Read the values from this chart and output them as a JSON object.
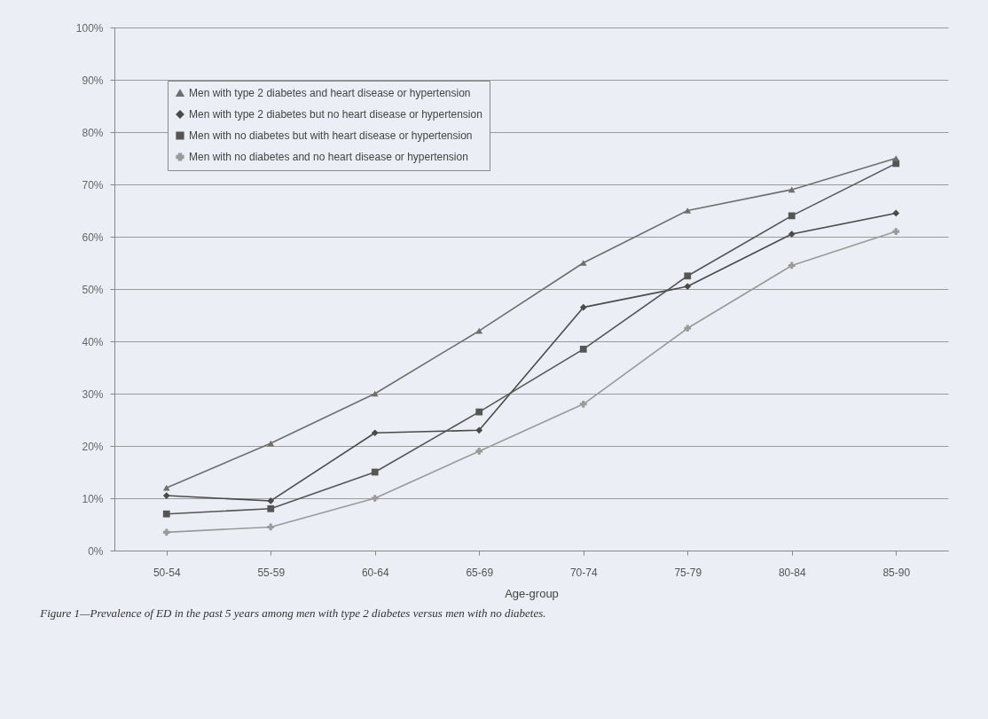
{
  "chart_data": {
    "type": "line",
    "xlabel": "Age-group",
    "categories": [
      "50-54",
      "55-59",
      "60-64",
      "65-69",
      "70-74",
      "75-79",
      "80-84",
      "85-90"
    ],
    "series": [
      {
        "name": "Men with type 2 diabetes and heart disease or hypertension",
        "color": "#6e6e6e",
        "marker": "triangle",
        "values": [
          12,
          20.5,
          30,
          42,
          55,
          65,
          69,
          75
        ]
      },
      {
        "name": "Men with type 2 diabetes but no heart disease or hypertension",
        "color": "#4a4a4a",
        "marker": "diamond",
        "values": [
          10.5,
          9.5,
          22.5,
          23,
          46.5,
          50.5,
          60.5,
          64.5
        ]
      },
      {
        "name": "Men with no diabetes but with heart disease or hypertension",
        "color": "#555555",
        "marker": "square",
        "values": [
          7,
          8,
          15,
          26.5,
          38.5,
          52.5,
          64,
          74
        ]
      },
      {
        "name": "Men with no diabetes and no heart disease or hypertension",
        "color": "#9a9a9a",
        "marker": "cross",
        "values": [
          3.5,
          4.5,
          10,
          19,
          28,
          42.5,
          54.5,
          61
        ]
      }
    ],
    "ylim": [
      0,
      100
    ],
    "yticks": [
      {
        "value": 0,
        "label": "0%"
      },
      {
        "value": 10,
        "label": "10%"
      },
      {
        "value": 20,
        "label": "20%"
      },
      {
        "value": 30,
        "label": "30%"
      },
      {
        "value": 40,
        "label": "40%"
      },
      {
        "value": 50,
        "label": "50%"
      },
      {
        "value": 60,
        "label": "60%"
      },
      {
        "value": 70,
        "label": "70%"
      },
      {
        "value": 80,
        "label": "80%"
      },
      {
        "value": 90,
        "label": "90%"
      },
      {
        "value": 100,
        "label": "100%"
      }
    ],
    "grid": "y",
    "legend": "top left",
    "line_style": "solid",
    "annotations": [
      "Figure 1—Prevalence of ED in the past 5 years among men with type 2 diabetes versus men with no diabetes."
    ]
  }
}
